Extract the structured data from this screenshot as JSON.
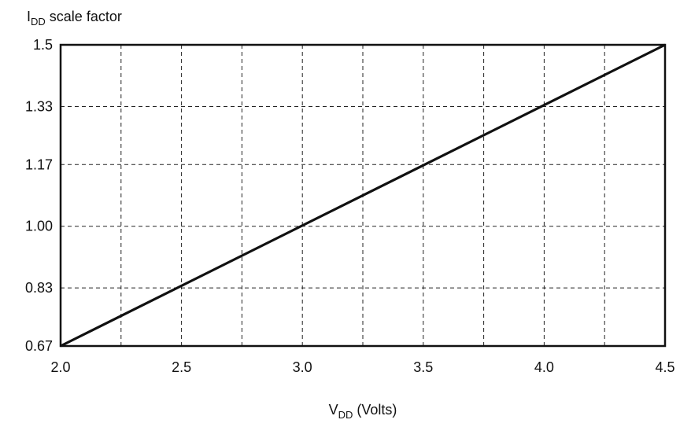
{
  "chart_data": {
    "type": "line",
    "ylabel_main": "I",
    "ylabel_sub": "DD",
    "ylabel_rest": " scale factor",
    "xlabel_main": "V",
    "xlabel_sub": "DD",
    "xlabel_rest": " (Volts)",
    "xlim": [
      2.0,
      4.5
    ],
    "ylim": [
      0.67,
      1.5
    ],
    "x_ticks": [
      2.0,
      2.5,
      3.0,
      3.5,
      4.0,
      4.5
    ],
    "x_tick_labels": [
      "2.0",
      "2.5",
      "3.0",
      "3.5",
      "4.0",
      "4.5"
    ],
    "x_grid": [
      2.25,
      2.5,
      2.75,
      3.0,
      3.25,
      3.5,
      3.75,
      4.0,
      4.25
    ],
    "y_ticks": [
      0.67,
      0.83,
      1.0,
      1.17,
      1.33,
      1.5
    ],
    "y_tick_labels": [
      "0.67",
      "0.83",
      "1.00",
      "1.17",
      "1.33",
      "1.5"
    ],
    "grid": true,
    "series": [
      {
        "x": [
          2.0,
          4.5
        ],
        "y": [
          0.67,
          1.5
        ]
      }
    ]
  }
}
